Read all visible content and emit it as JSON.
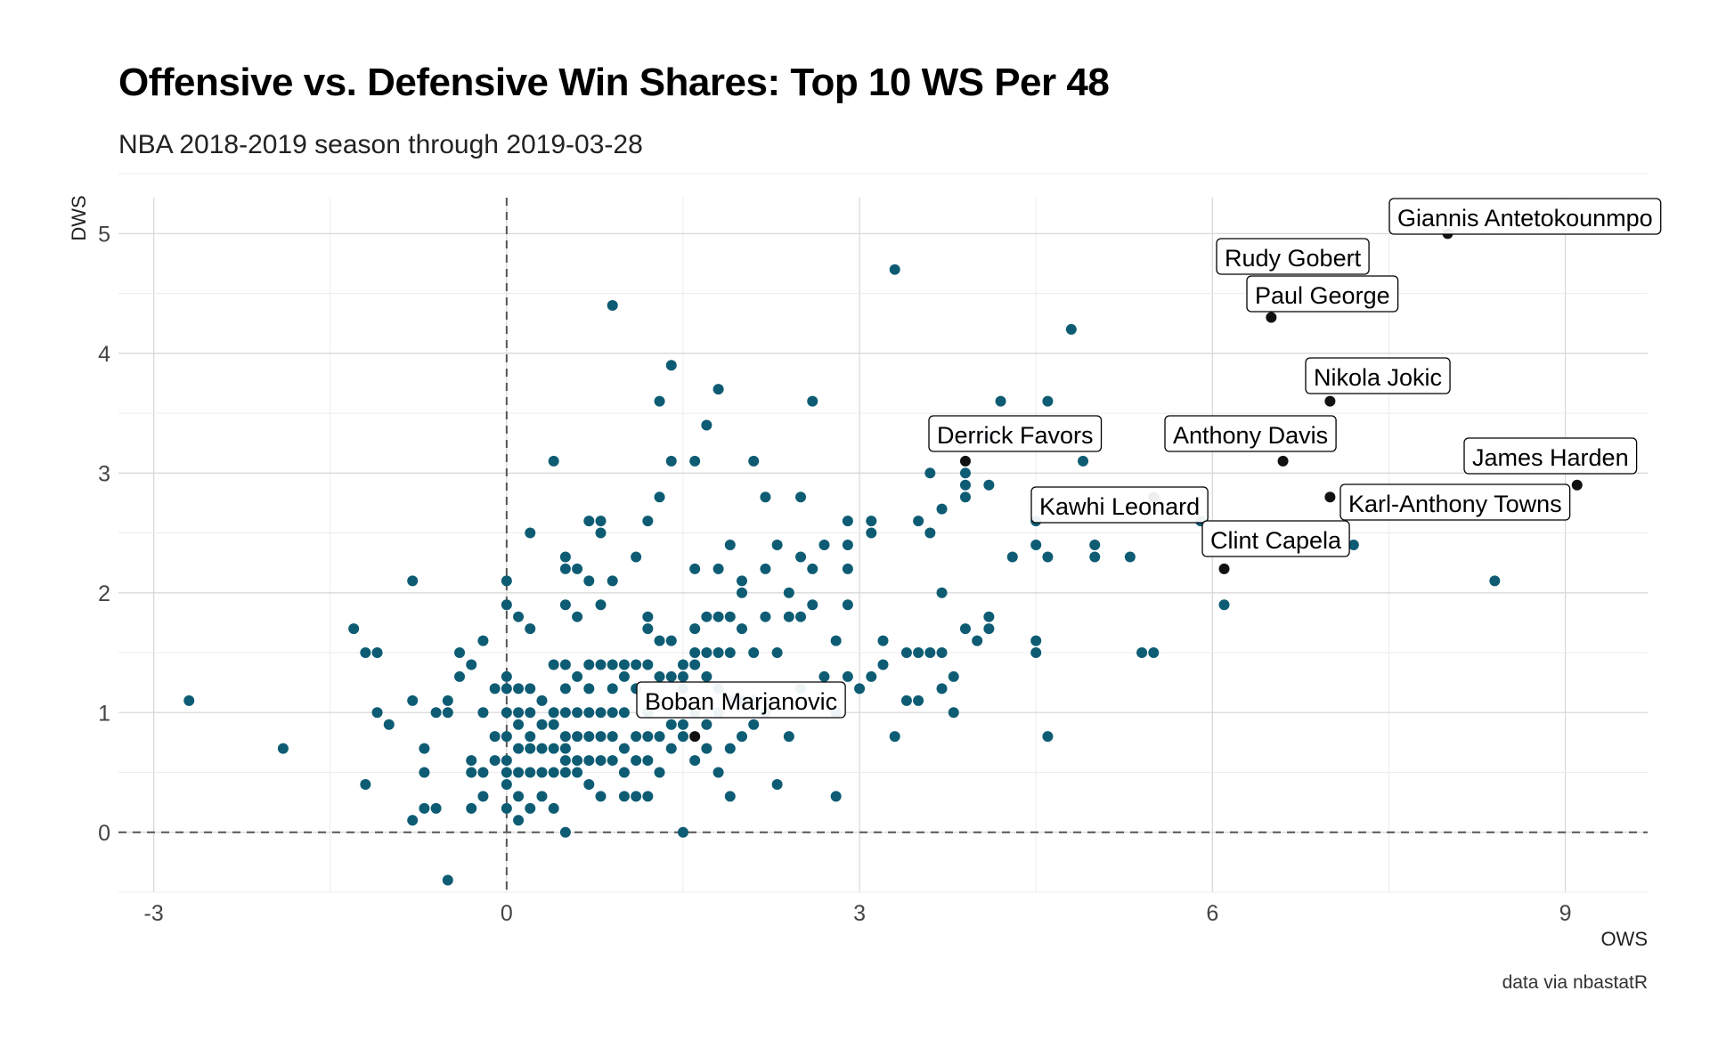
{
  "chart_data": {
    "type": "scatter",
    "title": "Offensive vs. Defensive Win Shares: Top 10 WS Per 48",
    "subtitle": "NBA 2018-2019 season through 2019-03-28",
    "caption": "data via nbastatR",
    "xlabel": "OWS",
    "ylabel": "DWS",
    "xlim": [
      -3.3,
      9.7
    ],
    "ylim": [
      -0.5,
      5.3
    ],
    "x_ticks": [
      -3,
      0,
      3,
      6,
      9
    ],
    "y_ticks": [
      0,
      1,
      2,
      3,
      4,
      5
    ],
    "grid": true,
    "reference_lines": {
      "x": 0,
      "y": 0,
      "style": "dashed"
    },
    "colors": {
      "points": "#0e5c74",
      "highlight": "#111111",
      "grid": "#d9d9d9",
      "ref_line": "#555555"
    },
    "highlighted": [
      {
        "name": "Giannis Antetokounmpo",
        "x": 8.0,
        "y": 5.0
      },
      {
        "name": "Rudy Gobert",
        "x": 7.2,
        "y": 4.8
      },
      {
        "name": "Paul George",
        "x": 6.5,
        "y": 4.3
      },
      {
        "name": "Nikola Jokic",
        "x": 7.0,
        "y": 3.6
      },
      {
        "name": "Derrick Favors",
        "x": 3.9,
        "y": 3.1
      },
      {
        "name": "Anthony Davis",
        "x": 6.6,
        "y": 3.1
      },
      {
        "name": "James Harden",
        "x": 9.1,
        "y": 2.9
      },
      {
        "name": "Kawhi Leonard",
        "x": 5.5,
        "y": 2.8
      },
      {
        "name": "Karl-Anthony Towns",
        "x": 7.0,
        "y": 2.8
      },
      {
        "name": "Clint Capela",
        "x": 6.1,
        "y": 2.2
      },
      {
        "name": "Boban Marjanovic",
        "x": 1.6,
        "y": 0.8
      }
    ],
    "points": [
      [
        -2.7,
        1.1
      ],
      [
        -1.9,
        0.7
      ],
      [
        -1.3,
        1.7
      ],
      [
        -1.2,
        1.5
      ],
      [
        -1.1,
        1.5
      ],
      [
        -1.2,
        0.4
      ],
      [
        -1.1,
        1.0
      ],
      [
        -1.0,
        0.9
      ],
      [
        -0.8,
        2.1
      ],
      [
        -0.8,
        1.1
      ],
      [
        -0.8,
        0.1
      ],
      [
        -0.7,
        0.7
      ],
      [
        -0.7,
        0.5
      ],
      [
        -0.7,
        0.2
      ],
      [
        -0.6,
        0.2
      ],
      [
        -0.6,
        1.0
      ],
      [
        -0.5,
        1.1
      ],
      [
        -0.5,
        1.0
      ],
      [
        -0.5,
        -0.4
      ],
      [
        -0.4,
        1.5
      ],
      [
        -0.4,
        1.3
      ],
      [
        -0.3,
        1.4
      ],
      [
        -0.3,
        0.6
      ],
      [
        -0.3,
        0.5
      ],
      [
        -0.3,
        0.2
      ],
      [
        -0.2,
        1.6
      ],
      [
        -0.2,
        1.0
      ],
      [
        -0.2,
        0.5
      ],
      [
        -0.2,
        0.3
      ],
      [
        -0.1,
        1.2
      ],
      [
        -0.1,
        0.8
      ],
      [
        0.0,
        2.1
      ],
      [
        0.0,
        1.9
      ],
      [
        0.0,
        1.3
      ],
      [
        0.0,
        1.2
      ],
      [
        0.0,
        1.0
      ],
      [
        0.0,
        0.8
      ],
      [
        0.0,
        0.6
      ],
      [
        0.0,
        0.5
      ],
      [
        0.0,
        0.4
      ],
      [
        0.0,
        0.2
      ],
      [
        -0.1,
        0.6
      ],
      [
        0.1,
        1.8
      ],
      [
        0.1,
        1.2
      ],
      [
        0.1,
        1.0
      ],
      [
        0.1,
        0.9
      ],
      [
        0.1,
        0.7
      ],
      [
        0.1,
        0.5
      ],
      [
        0.1,
        0.3
      ],
      [
        0.1,
        0.1
      ],
      [
        0.2,
        2.5
      ],
      [
        0.2,
        1.7
      ],
      [
        0.2,
        1.2
      ],
      [
        0.2,
        1.0
      ],
      [
        0.2,
        0.8
      ],
      [
        0.2,
        0.7
      ],
      [
        0.2,
        0.5
      ],
      [
        0.2,
        0.2
      ],
      [
        0.3,
        1.1
      ],
      [
        0.3,
        0.9
      ],
      [
        0.3,
        0.7
      ],
      [
        0.3,
        0.5
      ],
      [
        0.3,
        0.3
      ],
      [
        0.4,
        3.1
      ],
      [
        0.4,
        1.4
      ],
      [
        0.4,
        1.0
      ],
      [
        0.4,
        0.9
      ],
      [
        0.4,
        0.7
      ],
      [
        0.4,
        0.5
      ],
      [
        0.4,
        0.2
      ],
      [
        0.5,
        2.3
      ],
      [
        0.5,
        2.2
      ],
      [
        0.5,
        1.9
      ],
      [
        0.5,
        1.4
      ],
      [
        0.5,
        1.2
      ],
      [
        0.5,
        1.0
      ],
      [
        0.5,
        0.8
      ],
      [
        0.5,
        0.7
      ],
      [
        0.5,
        0.6
      ],
      [
        0.5,
        0.5
      ],
      [
        0.5,
        0.0
      ],
      [
        0.6,
        2.2
      ],
      [
        0.6,
        1.8
      ],
      [
        0.6,
        1.3
      ],
      [
        0.6,
        1.0
      ],
      [
        0.6,
        0.8
      ],
      [
        0.6,
        0.6
      ],
      [
        0.6,
        0.5
      ],
      [
        0.7,
        2.6
      ],
      [
        0.7,
        2.1
      ],
      [
        0.7,
        1.4
      ],
      [
        0.7,
        1.2
      ],
      [
        0.7,
        1.0
      ],
      [
        0.7,
        0.8
      ],
      [
        0.7,
        0.6
      ],
      [
        0.7,
        0.4
      ],
      [
        0.8,
        2.6
      ],
      [
        0.8,
        2.5
      ],
      [
        0.8,
        1.9
      ],
      [
        0.8,
        1.4
      ],
      [
        0.8,
        1.0
      ],
      [
        0.8,
        0.8
      ],
      [
        0.8,
        0.6
      ],
      [
        0.8,
        0.3
      ],
      [
        0.9,
        4.4
      ],
      [
        0.9,
        2.1
      ],
      [
        0.9,
        1.4
      ],
      [
        0.9,
        1.2
      ],
      [
        0.9,
        1.0
      ],
      [
        0.9,
        0.8
      ],
      [
        0.9,
        0.6
      ],
      [
        1.0,
        1.4
      ],
      [
        1.0,
        1.3
      ],
      [
        1.0,
        1.0
      ],
      [
        1.0,
        0.7
      ],
      [
        1.0,
        0.5
      ],
      [
        1.0,
        0.3
      ],
      [
        1.1,
        2.3
      ],
      [
        1.1,
        1.4
      ],
      [
        1.1,
        1.2
      ],
      [
        1.1,
        0.8
      ],
      [
        1.1,
        0.6
      ],
      [
        1.1,
        0.3
      ],
      [
        1.2,
        2.6
      ],
      [
        1.2,
        1.8
      ],
      [
        1.2,
        1.7
      ],
      [
        1.2,
        1.4
      ],
      [
        1.2,
        1.0
      ],
      [
        1.2,
        0.8
      ],
      [
        1.2,
        0.6
      ],
      [
        1.2,
        0.3
      ],
      [
        1.3,
        3.6
      ],
      [
        1.3,
        2.8
      ],
      [
        1.3,
        1.6
      ],
      [
        1.3,
        1.3
      ],
      [
        1.3,
        0.8
      ],
      [
        1.3,
        0.5
      ],
      [
        1.4,
        3.9
      ],
      [
        1.4,
        3.1
      ],
      [
        1.4,
        1.6
      ],
      [
        1.4,
        1.3
      ],
      [
        1.4,
        0.9
      ],
      [
        1.4,
        0.7
      ],
      [
        1.5,
        1.4
      ],
      [
        1.5,
        1.3
      ],
      [
        1.5,
        1.2
      ],
      [
        1.5,
        0.9
      ],
      [
        1.5,
        0.8
      ],
      [
        1.5,
        0.0
      ],
      [
        1.6,
        3.1
      ],
      [
        1.6,
        2.2
      ],
      [
        1.6,
        1.7
      ],
      [
        1.6,
        1.5
      ],
      [
        1.6,
        1.4
      ],
      [
        1.6,
        1.0
      ],
      [
        1.6,
        0.6
      ],
      [
        1.7,
        3.4
      ],
      [
        1.7,
        1.8
      ],
      [
        1.7,
        1.5
      ],
      [
        1.7,
        1.3
      ],
      [
        1.7,
        0.9
      ],
      [
        1.7,
        0.7
      ],
      [
        1.8,
        3.7
      ],
      [
        1.8,
        2.2
      ],
      [
        1.8,
        1.8
      ],
      [
        1.8,
        1.5
      ],
      [
        1.8,
        1.2
      ],
      [
        1.8,
        1.0
      ],
      [
        1.8,
        0.5
      ],
      [
        1.9,
        2.4
      ],
      [
        1.9,
        1.8
      ],
      [
        1.9,
        1.5
      ],
      [
        1.9,
        1.1
      ],
      [
        1.9,
        0.7
      ],
      [
        1.9,
        0.3
      ],
      [
        2.0,
        2.1
      ],
      [
        2.0,
        2.0
      ],
      [
        2.0,
        1.7
      ],
      [
        2.0,
        1.1
      ],
      [
        2.0,
        0.8
      ],
      [
        2.1,
        3.1
      ],
      [
        2.1,
        1.5
      ],
      [
        2.1,
        1.1
      ],
      [
        2.1,
        0.9
      ],
      [
        2.2,
        2.8
      ],
      [
        2.2,
        2.2
      ],
      [
        2.2,
        1.8
      ],
      [
        2.2,
        1.0
      ],
      [
        2.3,
        2.4
      ],
      [
        2.3,
        1.5
      ],
      [
        2.3,
        0.4
      ],
      [
        2.4,
        2.0
      ],
      [
        2.4,
        1.8
      ],
      [
        2.4,
        0.8
      ],
      [
        2.5,
        2.8
      ],
      [
        2.5,
        2.3
      ],
      [
        2.5,
        1.8
      ],
      [
        2.5,
        1.2
      ],
      [
        2.6,
        3.6
      ],
      [
        2.6,
        2.2
      ],
      [
        2.6,
        1.9
      ],
      [
        2.7,
        2.4
      ],
      [
        2.7,
        1.3
      ],
      [
        2.8,
        1.6
      ],
      [
        2.8,
        1.0
      ],
      [
        2.8,
        0.3
      ],
      [
        2.9,
        2.6
      ],
      [
        2.9,
        2.4
      ],
      [
        2.9,
        2.2
      ],
      [
        2.9,
        1.9
      ],
      [
        2.9,
        1.3
      ],
      [
        3.0,
        1.2
      ],
      [
        3.1,
        2.6
      ],
      [
        3.1,
        2.5
      ],
      [
        3.1,
        1.3
      ],
      [
        3.2,
        1.6
      ],
      [
        3.2,
        1.4
      ],
      [
        3.3,
        4.7
      ],
      [
        3.3,
        0.8
      ],
      [
        3.4,
        1.5
      ],
      [
        3.4,
        1.1
      ],
      [
        3.5,
        2.6
      ],
      [
        3.5,
        1.5
      ],
      [
        3.5,
        1.1
      ],
      [
        3.6,
        3.0
      ],
      [
        3.6,
        2.5
      ],
      [
        3.6,
        1.5
      ],
      [
        3.7,
        2.7
      ],
      [
        3.7,
        2.0
      ],
      [
        3.7,
        1.5
      ],
      [
        3.7,
        1.2
      ],
      [
        3.8,
        1.3
      ],
      [
        3.8,
        1.0
      ],
      [
        3.9,
        3.0
      ],
      [
        3.9,
        2.9
      ],
      [
        3.9,
        2.8
      ],
      [
        3.9,
        1.7
      ],
      [
        4.0,
        1.6
      ],
      [
        4.1,
        3.3
      ],
      [
        4.1,
        2.9
      ],
      [
        4.1,
        1.8
      ],
      [
        4.1,
        1.7
      ],
      [
        4.2,
        3.6
      ],
      [
        4.3,
        2.3
      ],
      [
        4.5,
        2.6
      ],
      [
        4.5,
        2.4
      ],
      [
        4.5,
        1.6
      ],
      [
        4.5,
        1.5
      ],
      [
        4.6,
        3.6
      ],
      [
        4.6,
        2.3
      ],
      [
        4.6,
        0.8
      ],
      [
        4.8,
        4.2
      ],
      [
        4.9,
        3.1
      ],
      [
        5.0,
        2.4
      ],
      [
        5.0,
        2.3
      ],
      [
        5.3,
        2.3
      ],
      [
        5.4,
        1.5
      ],
      [
        5.5,
        1.5
      ],
      [
        5.9,
        2.6
      ],
      [
        6.1,
        1.9
      ],
      [
        7.2,
        2.4
      ],
      [
        8.4,
        2.1
      ]
    ]
  }
}
